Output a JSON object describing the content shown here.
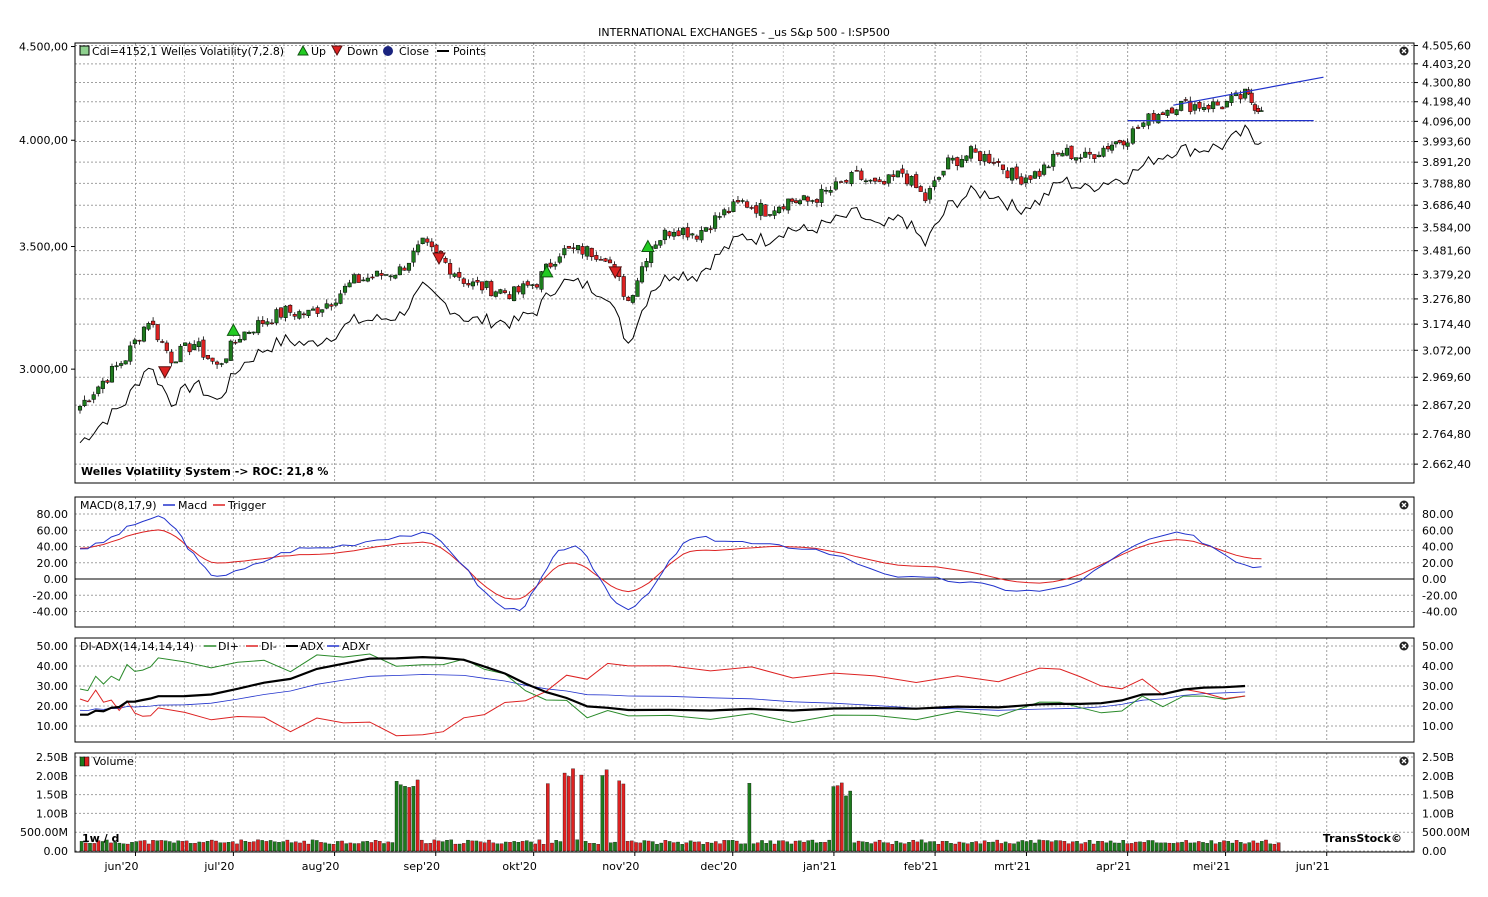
{
  "title": "INTERNATIONAL EXCHANGES - _us S&p 500 - I:SP500",
  "watermark": "TransStock©",
  "interval_label": "1w / d",
  "x_months": [
    "jun'20",
    "jul'20",
    "aug'20",
    "sep'20",
    "okt'20",
    "nov'20",
    "dec'20",
    "jan'21",
    "feb'21",
    "mrt'21",
    "apr'21",
    "mei'21",
    "jun'21"
  ],
  "colors": {
    "up": "#1e7b1e",
    "down": "#dd2222",
    "close": "#000000",
    "macd": "#2233cc",
    "trigger": "#dd2222",
    "di_plus": "#2a8a2a",
    "di_minus": "#dd2222",
    "adx": "#000000",
    "adxr": "#2233cc",
    "grid": "#a0a0a0",
    "frame": "#000000"
  },
  "panels": {
    "price": {
      "legend": {
        "candle": "Cdl=4152,1",
        "system": "Welles Volatility(7,2.8)",
        "up": "Up",
        "down": "Down",
        "close": "Close",
        "points": "Points"
      },
      "footer": "Welles Volatility System -> ROC: 21,8 %",
      "left_ticks": [
        "4.500,00",
        "4.000,00",
        "3.500,00",
        "3.000,00"
      ],
      "right_ticks": [
        "4.505,60",
        "4.403,20",
        "4.300,80",
        "4.198,40",
        "4.096,00",
        "3.993,60",
        "3.891,20",
        "3.788,80",
        "3.686,40",
        "3.584,00",
        "3.481,60",
        "3.379,20",
        "3.276,80",
        "3.174,40",
        "3.072,00",
        "2.969,60",
        "2.867,20",
        "2.764,80",
        "2.662,40"
      ]
    },
    "macd": {
      "legend": {
        "name": "MACD(8,17,9)",
        "macd": "Macd",
        "trigger": "Trigger"
      },
      "ticks": [
        "80.00",
        "60.00",
        "40.00",
        "20.00",
        "0.00",
        "-20.00",
        "-40.00"
      ]
    },
    "adx": {
      "legend": {
        "name": "DI-ADX(14,14,14,14)",
        "di_plus": "DI+",
        "di_minus": "DI-",
        "adx": "ADX",
        "adxr": "ADXr"
      },
      "ticks": [
        "50.00",
        "40.00",
        "30.00",
        "20.00",
        "10.00"
      ]
    },
    "volume": {
      "legend": {
        "name": "Volume"
      },
      "ticks": [
        "2.50B",
        "2.00B",
        "1.50B",
        "1.00B",
        "500.00M",
        "0.00"
      ]
    }
  },
  "chart_data": {
    "type": "candlestick",
    "symbol": "I:SP500",
    "x_range": [
      "2020-05-15",
      "2021-06-21"
    ],
    "price_ylim": [
      2600,
      4520
    ],
    "price_scale": "log",
    "last_close": 4152.1,
    "closes_weekly": [
      {
        "date": "2020-05-15",
        "close": 2864
      },
      {
        "date": "2020-05-22",
        "close": 2955
      },
      {
        "date": "2020-05-29",
        "close": 3044
      },
      {
        "date": "2020-06-05",
        "close": 3193
      },
      {
        "date": "2020-06-12",
        "close": 3041
      },
      {
        "date": "2020-06-19",
        "close": 3098
      },
      {
        "date": "2020-06-26",
        "close": 3009
      },
      {
        "date": "2020-07-03",
        "close": 3130
      },
      {
        "date": "2020-07-10",
        "close": 3185
      },
      {
        "date": "2020-07-17",
        "close": 3225
      },
      {
        "date": "2020-07-24",
        "close": 3216
      },
      {
        "date": "2020-07-31",
        "close": 3271
      },
      {
        "date": "2020-08-07",
        "close": 3351
      },
      {
        "date": "2020-08-14",
        "close": 3373
      },
      {
        "date": "2020-08-21",
        "close": 3397
      },
      {
        "date": "2020-08-28",
        "close": 3508
      },
      {
        "date": "2020-09-04",
        "close": 3427
      },
      {
        "date": "2020-09-11",
        "close": 3341
      },
      {
        "date": "2020-09-18",
        "close": 3319
      },
      {
        "date": "2020-09-25",
        "close": 3298
      },
      {
        "date": "2020-10-02",
        "close": 3348
      },
      {
        "date": "2020-10-09",
        "close": 3477
      },
      {
        "date": "2020-10-16",
        "close": 3483
      },
      {
        "date": "2020-10-23",
        "close": 3465
      },
      {
        "date": "2020-10-30",
        "close": 3270
      },
      {
        "date": "2020-11-06",
        "close": 3509
      },
      {
        "date": "2020-11-13",
        "close": 3585
      },
      {
        "date": "2020-11-20",
        "close": 3557
      },
      {
        "date": "2020-11-27",
        "close": 3638
      },
      {
        "date": "2020-12-04",
        "close": 3699
      },
      {
        "date": "2020-12-11",
        "close": 3663
      },
      {
        "date": "2020-12-18",
        "close": 3709
      },
      {
        "date": "2020-12-24",
        "close": 3703
      },
      {
        "date": "2020-12-31",
        "close": 3756
      },
      {
        "date": "2021-01-08",
        "close": 3824
      },
      {
        "date": "2021-01-15",
        "close": 3768
      },
      {
        "date": "2021-01-22",
        "close": 3841
      },
      {
        "date": "2021-01-29",
        "close": 3714
      },
      {
        "date": "2021-02-05",
        "close": 3886
      },
      {
        "date": "2021-02-12",
        "close": 3934
      },
      {
        "date": "2021-02-19",
        "close": 3906
      },
      {
        "date": "2021-02-26",
        "close": 3811
      },
      {
        "date": "2021-03-05",
        "close": 3841
      },
      {
        "date": "2021-03-12",
        "close": 3943
      },
      {
        "date": "2021-03-19",
        "close": 3913
      },
      {
        "date": "2021-03-26",
        "close": 3974
      },
      {
        "date": "2021-04-01",
        "close": 4019
      },
      {
        "date": "2021-04-09",
        "close": 4128
      },
      {
        "date": "2021-04-16",
        "close": 4185
      },
      {
        "date": "2021-04-23",
        "close": 4180
      },
      {
        "date": "2021-04-30",
        "close": 4181
      },
      {
        "date": "2021-05-07",
        "close": 4232
      },
      {
        "date": "2021-05-12",
        "close": 4152
      }
    ],
    "signals": [
      {
        "type": "Down",
        "date": "2020-06-10",
        "price": 2990
      },
      {
        "type": "Up",
        "date": "2020-07-01",
        "price": 3150
      },
      {
        "type": "Down",
        "date": "2020-09-02",
        "price": 3450
      },
      {
        "type": "Up",
        "date": "2020-10-05",
        "price": 3390
      },
      {
        "type": "Down",
        "date": "2020-10-26",
        "price": 3390
      },
      {
        "type": "Up",
        "date": "2020-11-05",
        "price": 3500
      }
    ],
    "trendlines": [
      {
        "from": {
          "date": "2021-04-15",
          "price": 4180
        },
        "to": {
          "date": "2021-05-31",
          "price": 4330
        }
      },
      {
        "from": {
          "date": "2021-04-01",
          "price": 4100
        },
        "to": {
          "date": "2021-05-28",
          "price": 4100
        }
      }
    ],
    "macd": [
      {
        "date": "2020-05-15",
        "macd": 38,
        "trigger": 38
      },
      {
        "date": "2020-06-08",
        "macd": 75,
        "trigger": 60
      },
      {
        "date": "2020-06-26",
        "macd": 5,
        "trigger": 20
      },
      {
        "date": "2020-07-24",
        "macd": 38,
        "trigger": 30
      },
      {
        "date": "2020-08-28",
        "macd": 55,
        "trigger": 45
      },
      {
        "date": "2020-09-25",
        "macd": -38,
        "trigger": -25
      },
      {
        "date": "2020-10-12",
        "macd": 40,
        "trigger": 20
      },
      {
        "date": "2020-10-30",
        "macd": -35,
        "trigger": -15
      },
      {
        "date": "2020-11-20",
        "macd": 50,
        "trigger": 35
      },
      {
        "date": "2020-12-18",
        "macd": 40,
        "trigger": 40
      },
      {
        "date": "2021-01-29",
        "macd": 0,
        "trigger": 15
      },
      {
        "date": "2021-03-05",
        "macd": -15,
        "trigger": -5
      },
      {
        "date": "2021-04-16",
        "macd": 55,
        "trigger": 48
      },
      {
        "date": "2021-05-12",
        "macd": 15,
        "trigger": 25
      }
    ],
    "di_adx": [
      {
        "date": "2020-05-15",
        "di_plus": 30,
        "di_minus": 25,
        "adx": 16,
        "adxr": 18
      },
      {
        "date": "2020-06-08",
        "di_plus": 40,
        "di_minus": 15,
        "adx": 24,
        "adxr": 20
      },
      {
        "date": "2020-08-28",
        "di_plus": 43,
        "di_minus": 8,
        "adx": 45,
        "adxr": 36
      },
      {
        "date": "2020-10-30",
        "di_plus": 15,
        "di_minus": 40,
        "adx": 18,
        "adxr": 25
      },
      {
        "date": "2021-03-05",
        "di_plus": 18,
        "di_minus": 35,
        "adx": 20,
        "adxr": 18
      },
      {
        "date": "2021-05-07",
        "di_plus": 25,
        "di_minus": 25,
        "adx": 30,
        "adxr": 27
      }
    ],
    "volume_range": [
      0,
      2500000000
    ]
  }
}
